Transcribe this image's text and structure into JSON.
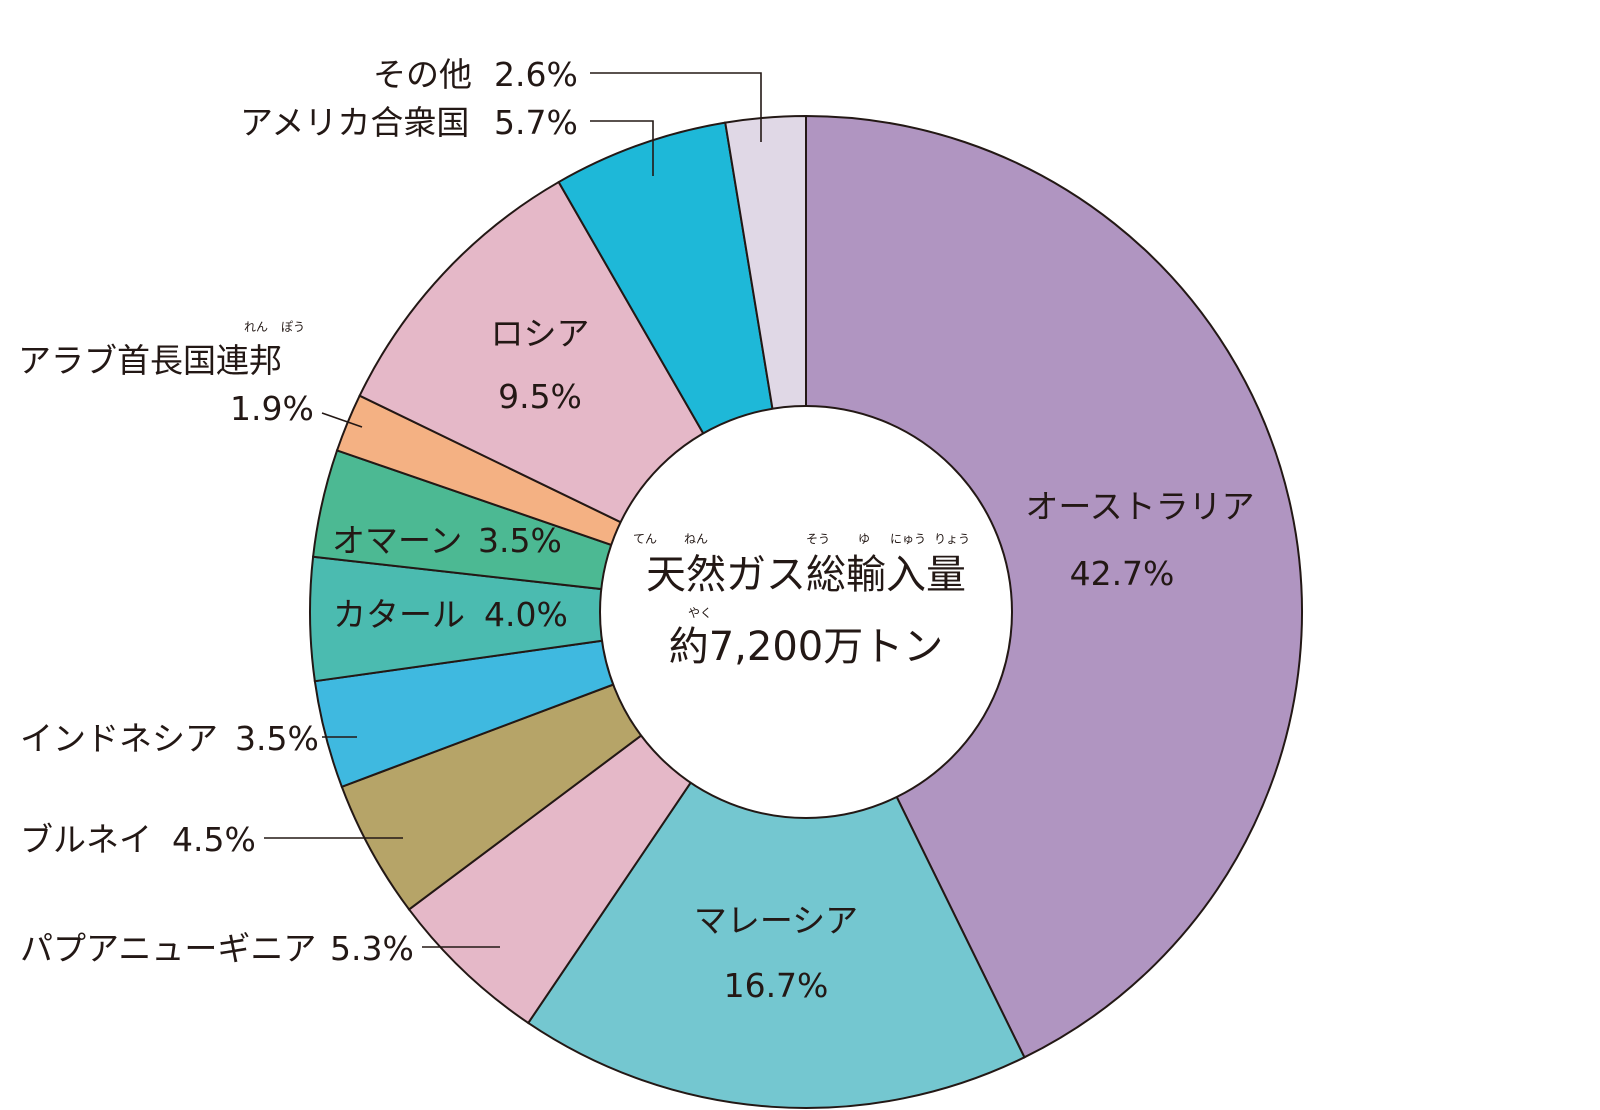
{
  "chart_data": {
    "type": "pie",
    "variant": "donut",
    "title": "天然ガス総輸入量",
    "title_ruby": [
      "てん",
      "ねん",
      "そう",
      "ゆ",
      "にゅう",
      "りょう"
    ],
    "subtitle": "約7,200万トン",
    "subtitle_ruby": "やく",
    "unit": "%",
    "slices": [
      {
        "label": "オーストラリア",
        "value": 42.7,
        "value_text": "42.7%",
        "color": "#b095c1"
      },
      {
        "label": "マレーシア",
        "value": 16.7,
        "value_text": "16.7%",
        "color": "#74c7d0"
      },
      {
        "label": "パプアニューギニア",
        "value": 5.3,
        "value_text": "5.3%",
        "color": "#e5b8c8"
      },
      {
        "label": "ブルネイ",
        "value": 4.5,
        "value_text": "4.5%",
        "color": "#b6a468"
      },
      {
        "label": "インドネシア",
        "value": 3.5,
        "value_text": "3.5%",
        "color": "#3fb9e0"
      },
      {
        "label": "カタール",
        "value": 4.0,
        "value_text": "4.0%",
        "color": "#4bbbb0"
      },
      {
        "label": "オマーン",
        "value": 3.5,
        "value_text": "3.5%",
        "color": "#4cb993"
      },
      {
        "label": "アラブ首長国連邦",
        "value": 1.9,
        "value_text": "1.9%",
        "color": "#f4b183",
        "ruby": [
          "れん",
          "ぽう"
        ]
      },
      {
        "label": "ロシア",
        "value": 9.5,
        "value_text": "9.5%",
        "color": "#e5b8c8"
      },
      {
        "label": "アメリカ合衆国",
        "value": 5.7,
        "value_text": "5.7%",
        "color": "#1eb8d8"
      },
      {
        "label": "その他",
        "value": 2.6,
        "value_text": "2.6%",
        "color": "#e0d8e6"
      }
    ]
  }
}
